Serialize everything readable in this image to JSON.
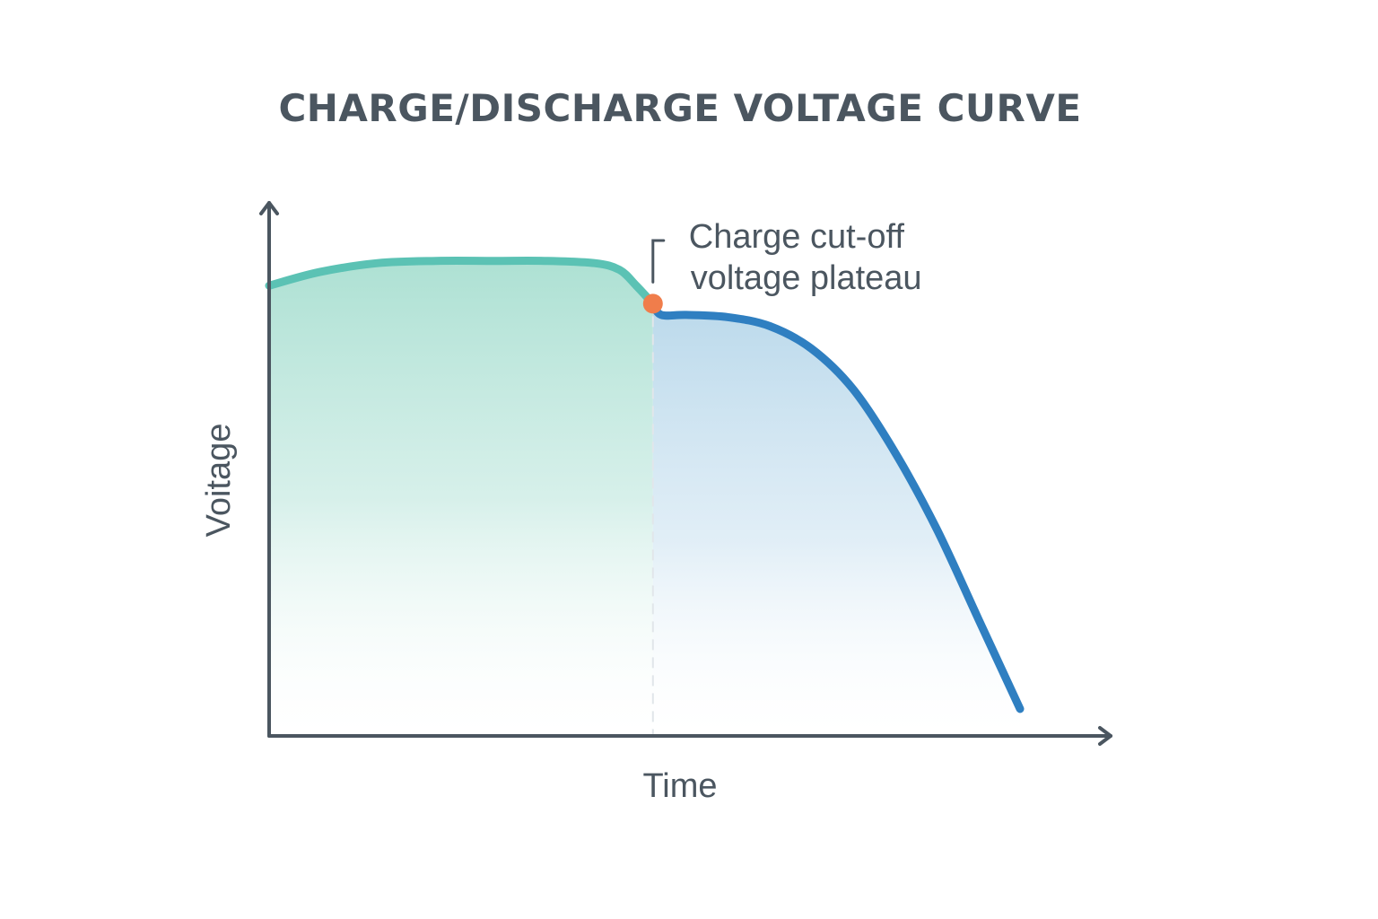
{
  "chart_data": {
    "type": "line",
    "title": "CHARGE/DISCHARGE VOLTAGE CURVE",
    "xlabel": "Time",
    "ylabel": "Voitage",
    "annotation": {
      "lines": [
        "Charge cut-off",
        "voltage plateau"
      ],
      "x": 0.46,
      "y": 0.96
    },
    "xlim": [
      0,
      1
    ],
    "ylim": [
      0,
      1.17
    ],
    "grid": false,
    "legend": "none",
    "series": [
      {
        "color": "#5bc2b4",
        "fill_color": "#a9dfd1",
        "x": [
          0.0,
          0.06,
          0.13,
          0.2,
          0.27,
          0.33,
          0.39,
          0.42,
          0.44,
          0.46
        ],
        "y": [
          1.0,
          1.03,
          1.05,
          1.055,
          1.055,
          1.055,
          1.05,
          1.035,
          1.0,
          0.96
        ]
      },
      {
        "color": "#2f7fc1",
        "fill_color": "#b7d7ea",
        "x": [
          0.46,
          0.47,
          0.5,
          0.55,
          0.6,
          0.65,
          0.7,
          0.75,
          0.8,
          0.85,
          0.9
        ],
        "y": [
          0.96,
          0.935,
          0.935,
          0.93,
          0.91,
          0.86,
          0.77,
          0.63,
          0.46,
          0.26,
          0.06
        ]
      }
    ],
    "marker": {
      "x": 0.46,
      "y": 0.96,
      "color": "#f07d4b"
    },
    "colors": {
      "axis": "#4b5660",
      "text": "#4b5660",
      "guide": "#e1e6ea"
    }
  }
}
